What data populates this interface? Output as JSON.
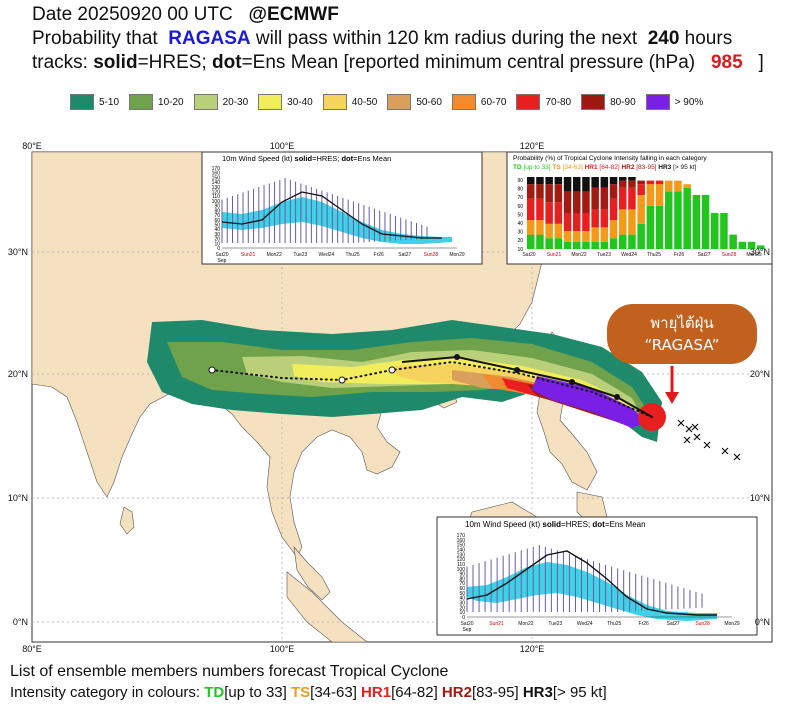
{
  "header": {
    "line1_prefix": "Date 20250920 00 UTC",
    "line1_handle": "@ECMWF",
    "line2_prefix": "Probability that",
    "storm_name": "RAGASA",
    "line2_mid": "will pass within 120 km radius during the next",
    "hours": "240",
    "hours_unit": "hours",
    "line3_tracks": "tracks:",
    "solid_word": "solid",
    "solid_def": "=HRES;",
    "dot_word": "dot",
    "dot_def": "=Ens Mean [reported minimum central pressure (hPa)",
    "pressure": "985",
    "bracket_close": "]"
  },
  "legend": [
    {
      "label": "5-10",
      "color": "#1f8a6b"
    },
    {
      "label": "10-20",
      "color": "#6fa24a"
    },
    {
      "label": "20-30",
      "color": "#b9cf7a"
    },
    {
      "label": "30-40",
      "color": "#f2ee5b"
    },
    {
      "label": "40-50",
      "color": "#f6d35c"
    },
    {
      "label": "50-60",
      "color": "#d9a05d"
    },
    {
      "label": "60-70",
      "color": "#f28a2e"
    },
    {
      "label": "70-80",
      "color": "#e81f1f"
    },
    {
      "label": "80-90",
      "color": "#9d1a10"
    },
    {
      "label": "> 90%",
      "color": "#7a1fe6"
    }
  ],
  "map": {
    "lon_top": [
      "80°E",
      "100°E",
      "120°E"
    ],
    "lon_bottom": [
      "80°E",
      "100°E",
      "120°E"
    ],
    "lat_left": [
      "30°N",
      "20°N",
      "10°N",
      "0°N"
    ],
    "lat_right": [
      "30°N",
      "20°N",
      "10°N",
      "0°N"
    ],
    "callout_line1": "พายุไต้ฝุ่น",
    "callout_line2": "“RAGASA”",
    "colors": {
      "land": "#f5e1bf",
      "sea": "#ffffff",
      "callout": "#c2611e",
      "arrow": "#e0181c"
    }
  },
  "inset_wind_top": {
    "title_prefix": "10m Wind Speed (kt)",
    "solid": "solid",
    "solid_def": "=HRES;",
    "dot": "dot",
    "dot_def": "=Ens Mean",
    "y_ticks": [
      "170",
      "160",
      "150",
      "140",
      "130",
      "120",
      "110",
      "100",
      "90",
      "80",
      "70",
      "60",
      "50",
      "40",
      "30",
      "20",
      "10",
      "0"
    ],
    "x_ticks": [
      "Sat20",
      "Sun21",
      "Mon22",
      "Tue23",
      "Wed24",
      "Thu25",
      "Fr26",
      "Sat27",
      "Sun28",
      "Mon29"
    ],
    "x_sub": "Sep"
  },
  "inset_prob": {
    "title": "Probability (%) of Tropical Cyclone Intensity falling in each category",
    "cats": [
      {
        "name": "TD",
        "range": "[up to 33]",
        "color": "#22c51e"
      },
      {
        "name": "TS",
        "range": "[34-63]",
        "color": "#f39a18"
      },
      {
        "name": "HR1",
        "range": "[64-82]",
        "color": "#e81f1f"
      },
      {
        "name": "HR2",
        "range": "[83-95]",
        "color": "#a11b12"
      },
      {
        "name": "HR3",
        "range": "[> 95 kt]",
        "color": "#111111"
      }
    ],
    "y_ticks": [
      "90",
      "80",
      "70",
      "60",
      "50",
      "40",
      "30",
      "20",
      "10"
    ],
    "x_ticks": [
      "Sat20",
      "Sun21",
      "Mon22",
      "Tue23",
      "Wed24",
      "Thu25",
      "Fr26",
      "Sat27",
      "Sun28",
      "Mon29"
    ],
    "x_sub": "Sep"
  },
  "inset_wind_bottom": {
    "title_prefix": "10m Wind Speed (kt)",
    "solid": "solid",
    "solid_def": "=HRES;",
    "dot": "dot",
    "dot_def": "=Ens Mean",
    "y_ticks": [
      "170",
      "160",
      "150",
      "140",
      "130",
      "120",
      "110",
      "100",
      "90",
      "80",
      "70",
      "60",
      "50",
      "40",
      "30",
      "20",
      "10",
      "0"
    ],
    "x_ticks": [
      "Sat20",
      "Sun21",
      "Mon22",
      "Tue23",
      "Wed24",
      "Thu25",
      "Fr26",
      "Sat27",
      "Sun28",
      "Mon29"
    ],
    "x_sub": "Sep"
  },
  "footer": {
    "line1": "List of ensemble members numbers forecast Tropical Cyclone",
    "line2_prefix": "Intensity category in colours:",
    "cats": [
      {
        "name": "TD",
        "range": "[up to 33]",
        "color": "#22c51e"
      },
      {
        "name": "TS",
        "range": "[34-63]",
        "color": "#f39a18"
      },
      {
        "name": "HR1",
        "range": "[64-82]",
        "color": "#e81f1f"
      },
      {
        "name": "HR2",
        "range": "[83-95]",
        "color": "#a11b12"
      },
      {
        "name": "HR3",
        "range": "[> 95 kt]",
        "color": "#111111"
      }
    ]
  }
}
